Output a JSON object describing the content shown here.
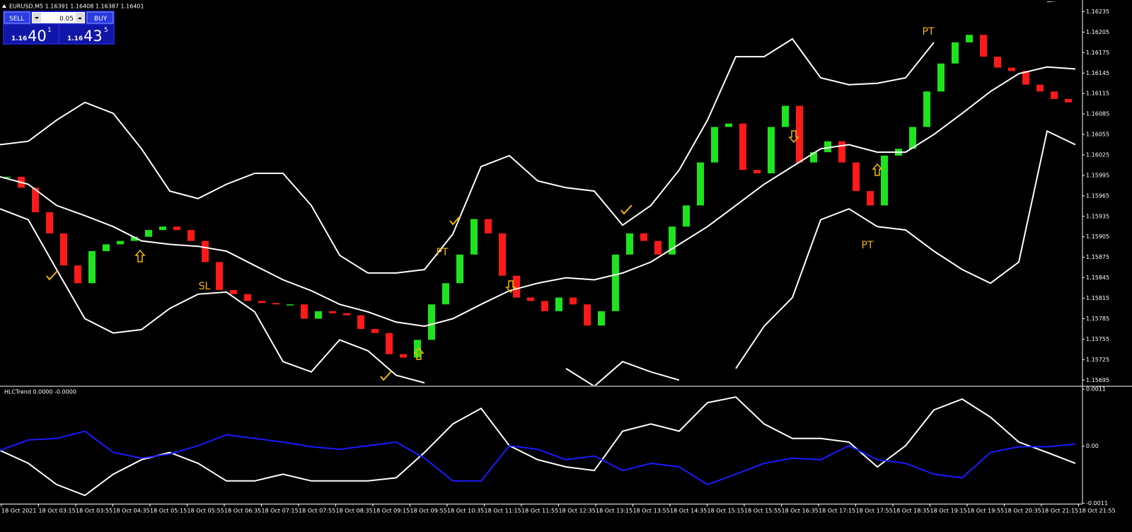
{
  "window": {
    "title": "EURUSD,M5  1.16391 1.16408 1.16387 1.16401"
  },
  "trade_panel": {
    "sell": "SELL",
    "lot": "0.05",
    "buy": "BUY",
    "bid_prefix": "1.16",
    "bid_big": "40",
    "bid_sup": "1",
    "ask_prefix": "1.16",
    "ask_big": "43",
    "ask_sup": "5"
  },
  "time_labels": [
    "18 Oct 2021",
    "18 Oct 03:15",
    "18 Oct 03:55",
    "18 Oct 04:35",
    "18 Oct 05:15",
    "18 Oct 05:55",
    "18 Oct 06:35",
    "18 Oct 07:15",
    "18 Oct 07:55",
    "18 Oct 08:35",
    "18 Oct 09:15",
    "18 Oct 09:55",
    "18 Oct 10:35",
    "18 Oct 11:15",
    "18 Oct 11:55",
    "18 Oct 12:35",
    "18 Oct 13:15",
    "18 Oct 13:55",
    "18 Oct 14:35",
    "18 Oct 15:15",
    "18 Oct 15:55",
    "18 Oct 16:35",
    "18 Oct 17:15",
    "18 Oct 17:55",
    "18 Oct 18:35",
    "18 Oct 19:15",
    "18 Oct 19:55",
    "18 Oct 20:35",
    "18 Oct 21:15",
    "18 Oct 21:55"
  ],
  "chart_data": [
    {
      "type": "candlestick",
      "close": [
        1.15993,
        1.15977,
        1.15941,
        1.1591,
        1.15863,
        1.15837,
        1.15884,
        1.15894,
        1.15899,
        1.15905,
        1.15915,
        1.1592,
        1.15915,
        1.15899,
        1.15868,
        1.15827,
        1.15821,
        1.15811,
        1.15808,
        1.15806,
        1.15806,
        1.15785,
        1.15796,
        1.15793,
        1.1579,
        1.1577,
        1.15764,
        1.15733,
        1.15728,
        1.15754,
        1.15806,
        1.15837,
        1.15879,
        1.15931,
        1.1591,
        1.15848,
        1.15816,
        1.15811,
        1.15796,
        1.15816,
        1.15806,
        1.15775,
        1.15796,
        1.15879,
        1.1591,
        1.15899,
        1.15879,
        1.1592,
        1.15951,
        1.16014,
        1.16066,
        1.16071,
        1.16003,
        1.15998,
        1.16066,
        1.16097,
        1.16014,
        1.16029,
        1.16045,
        1.16014,
        1.15972,
        1.15951,
        1.16024,
        1.16034,
        1.16066,
        1.16118,
        1.16159,
        1.1619,
        1.16201,
        1.16169,
        1.16153,
        1.16148,
        1.16128,
        1.16118,
        1.16107,
        1.16102
      ],
      "up_color": "#1ee31e",
      "down_color": "#ff1a1a",
      "bands": {
        "color": "#ffffff",
        "upper": [
          1.1604,
          1.16045,
          1.16076,
          1.16102,
          1.16086,
          1.16034,
          1.15972,
          1.15961,
          1.15982,
          1.15998,
          1.15998,
          1.15951,
          1.15878,
          1.15852,
          1.15852,
          1.15857,
          1.15909,
          1.16008,
          1.16024,
          1.15987,
          1.15977,
          1.15972,
          1.15922,
          1.15951,
          1.16003,
          1.16076,
          1.16169,
          1.16169,
          1.16195,
          1.16138,
          1.16128,
          1.1613,
          1.16138,
          1.1619,
          null,
          null,
          null,
          1.1625,
          1.16253
        ],
        "middle": [
          1.15993,
          1.15982,
          1.15951,
          1.15936,
          1.1592,
          1.15899,
          1.15894,
          1.15891,
          1.15884,
          1.15863,
          1.15842,
          1.15826,
          1.15806,
          1.15795,
          1.1578,
          1.15774,
          1.15785,
          1.15806,
          1.15826,
          1.15837,
          1.15845,
          1.15842,
          1.15852,
          1.15868,
          1.15894,
          1.1592,
          1.15951,
          1.15982,
          1.16008,
          1.16034,
          1.1604,
          1.16029,
          1.16029,
          1.16055,
          1.16086,
          1.16118,
          1.16144,
          1.16154,
          1.16151
        ],
        "lower": [
          1.15946,
          1.1593,
          1.15857,
          1.15785,
          1.15764,
          1.15769,
          1.158,
          1.15821,
          1.15824,
          1.15795,
          1.15722,
          1.15707,
          1.15754,
          1.15738,
          1.15702,
          1.15691,
          null,
          null,
          null,
          null,
          1.15712,
          1.15686,
          1.15722,
          1.15707,
          1.15695,
          null,
          1.15712,
          1.15774,
          1.15816,
          1.1593,
          1.15946,
          1.1592,
          1.15915,
          1.15884,
          1.15857,
          1.15837,
          1.15868,
          1.1606,
          1.1604
        ]
      },
      "annotations": [
        "PT",
        "PT",
        "PT",
        "SL"
      ],
      "annotation_color": "#f5b800",
      "ylim": [
        1.15687,
        1.1625
      ],
      "yticks": [
        1.16235,
        1.16205,
        1.16175,
        1.16145,
        1.16115,
        1.16085,
        1.16055,
        1.16025,
        1.15995,
        1.15965,
        1.15935,
        1.15905,
        1.15875,
        1.15845,
        1.15815,
        1.15785,
        1.15755,
        1.15725,
        1.15695
      ]
    },
    {
      "type": "line",
      "title": "HLCTrend 0.0000 -0.0000",
      "series": [
        {
          "color": "#ffffff",
          "values": [
            -8e-05,
            -0.00033,
            -0.00074,
            -0.00095,
            -0.00054,
            -0.00026,
            -0.00012,
            -0.00033,
            -0.00067,
            -0.00067,
            -0.00054,
            -0.00067,
            -0.00067,
            -0.00067,
            -0.00061,
            -0.00012,
            0.00043,
            0.00073,
            1e-05,
            -0.00026,
            -0.0004,
            -0.00047,
            0.00029,
            0.00043,
            0.00029,
            0.00084,
            0.00095,
            0.00043,
            0.00015,
            0.00015,
            8e-05,
            -0.0004,
            1e-05,
            0.0007,
            0.00091,
            0.00056,
            8e-05,
            -0.00012,
            -0.00033
          ]
        },
        {
          "color": "#1a1aff",
          "values": [
            -8e-05,
            0.00012,
            0.00015,
            0.00029,
            -0.00012,
            -0.00023,
            -0.00015,
            1e-05,
            0.00022,
            0.00015,
            8e-05,
            -1e-05,
            -6e-05,
            1e-05,
            8e-05,
            -0.00023,
            -0.00067,
            -0.00067,
            1e-05,
            -6e-05,
            -0.00026,
            -0.00019,
            -0.00047,
            -0.00033,
            -0.0004,
            -0.00074,
            -0.00054,
            -0.00033,
            -0.00023,
            -0.00026,
            1e-05,
            -0.00026,
            -0.00033,
            -0.00054,
            -0.00061,
            -0.00012,
            -1e-05,
            -1e-05,
            4e-05
          ]
        }
      ],
      "ylim": [
        -0.00111,
        0.00113
      ],
      "yticks": [
        0.0011,
        {
          "value": 0,
          "label": "0.00"
        },
        -0.0011
      ]
    }
  ]
}
